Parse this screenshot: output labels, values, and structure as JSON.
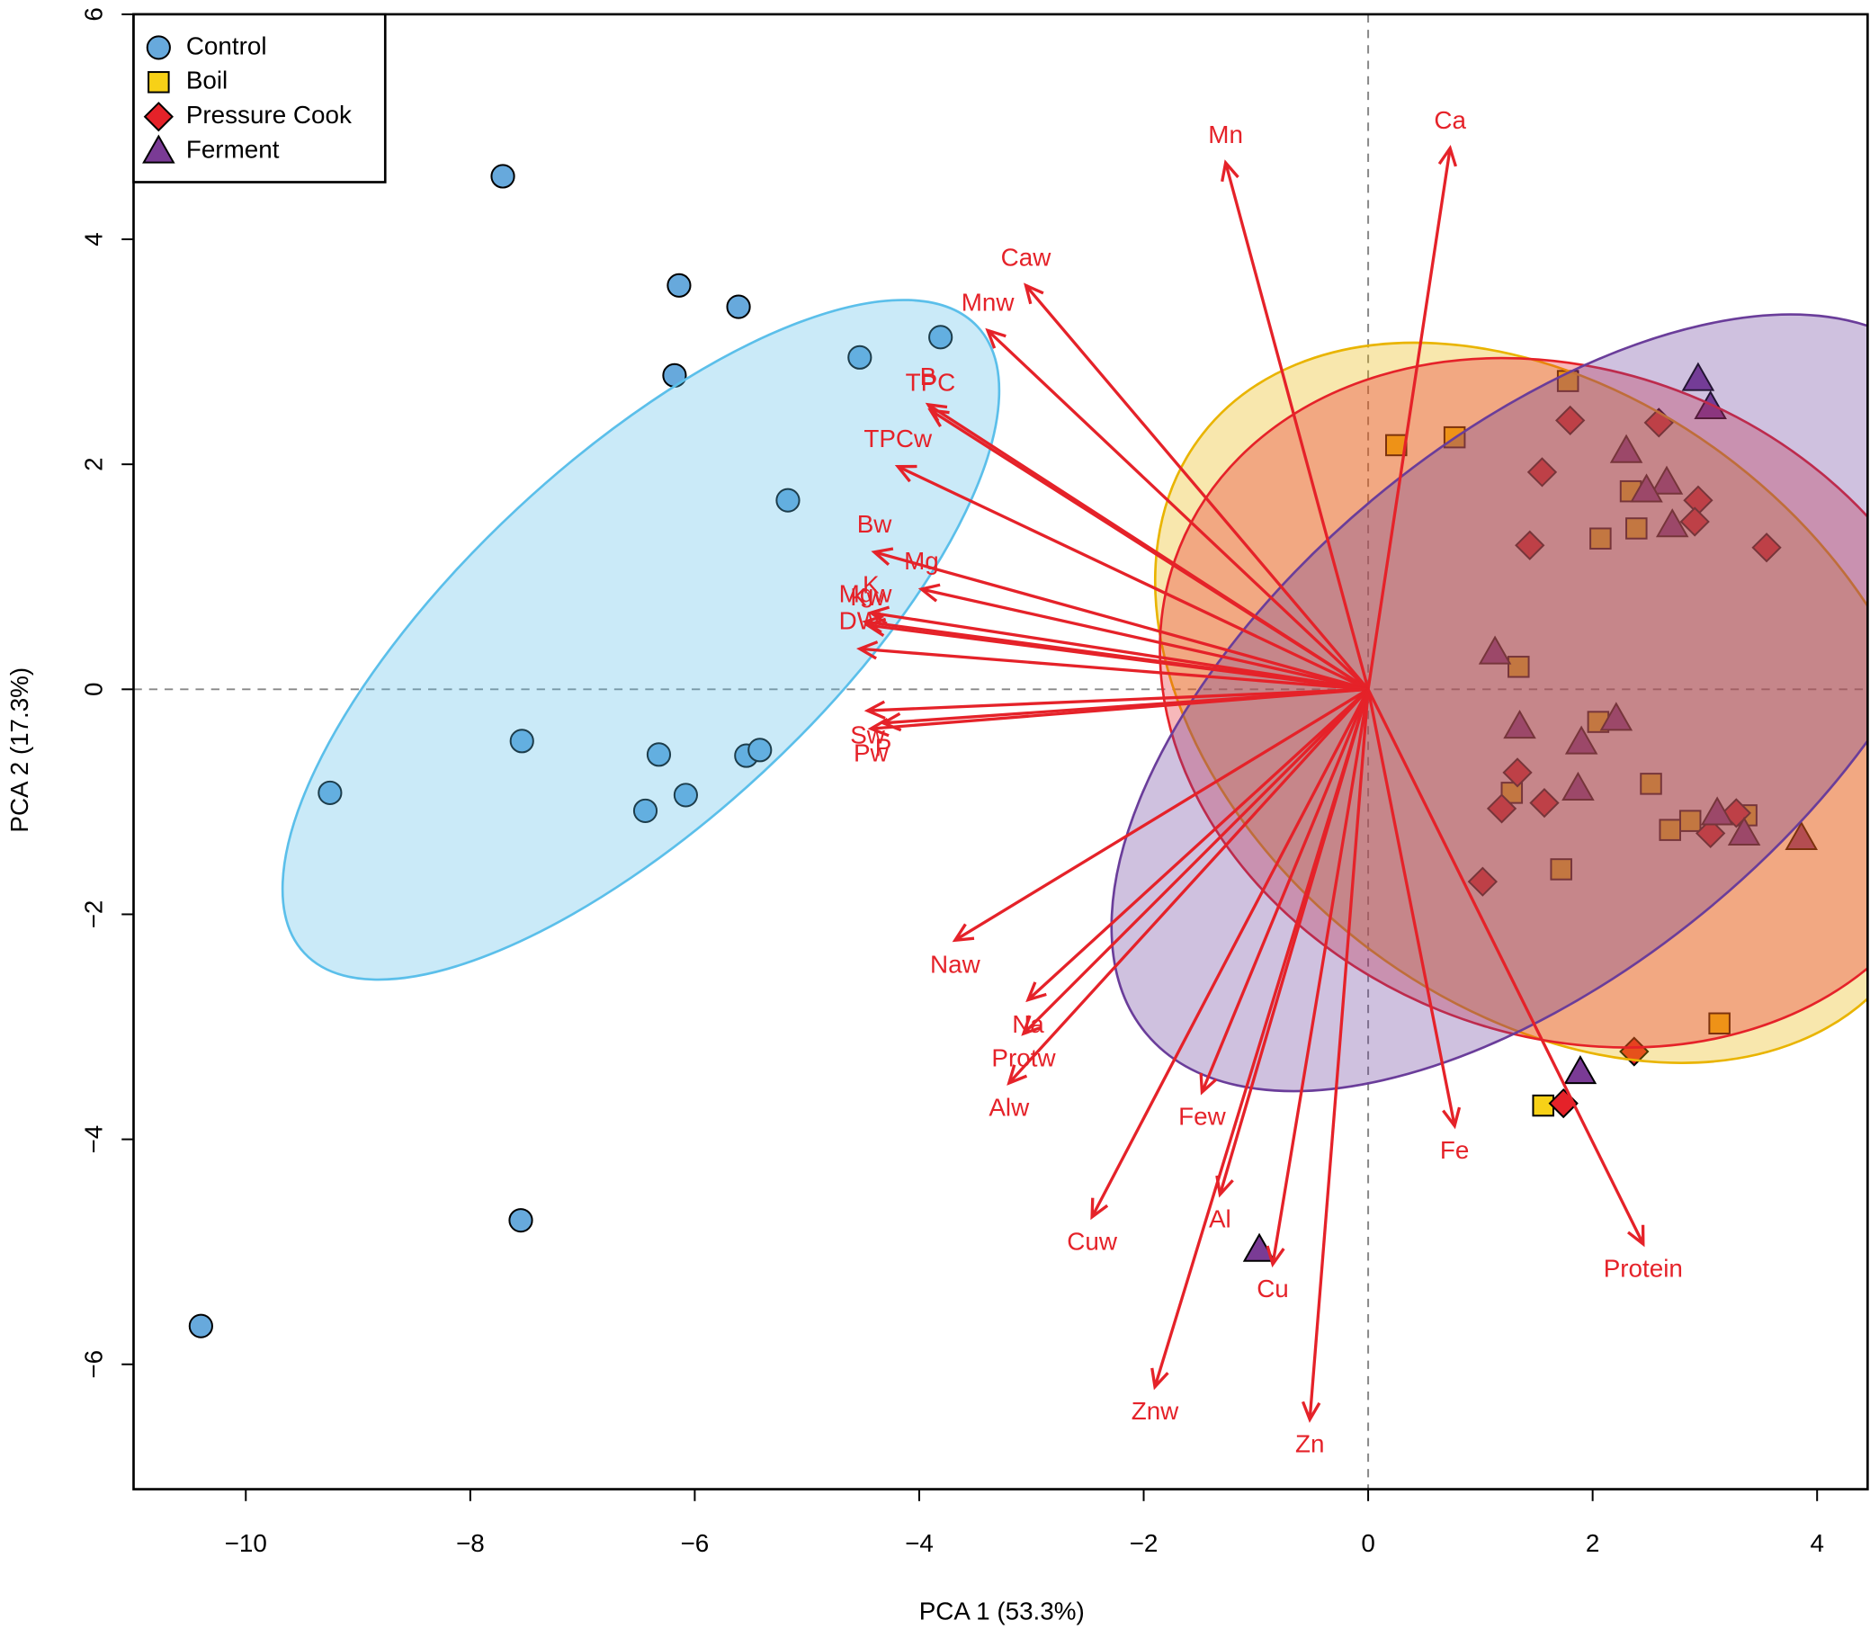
{
  "chart_data": {
    "type": "scatter",
    "x_label": "PCA 1 (53.3%)",
    "y_label": "PCA 2 (17.3%)",
    "xlim": [
      -11,
      4.45
    ],
    "ylim": [
      -7.11,
      6
    ],
    "xticks": [
      {
        "value": -10,
        "label": "−10"
      },
      {
        "value": -8,
        "label": "−8"
      },
      {
        "value": -6,
        "label": "−6"
      },
      {
        "value": -4,
        "label": "−4"
      },
      {
        "value": -2,
        "label": "−2"
      },
      0,
      2,
      4
    ],
    "yticks": [
      {
        "value": -6,
        "label": "−6"
      },
      {
        "value": -4,
        "label": "−4"
      },
      {
        "value": -2,
        "label": "−2"
      },
      0,
      2,
      4,
      6
    ],
    "legend": "upper left",
    "series": [
      {
        "name": "Control",
        "color": "#67a9dc",
        "marker": "circle",
        "x": [
          -7.71,
          -6.14,
          -5.61,
          -6.18,
          -4.53,
          -3.81,
          -5.17,
          -9.25,
          -7.54,
          -6.32,
          -5.54,
          -5.42,
          -6.08,
          -6.44,
          -7.55,
          -10.4
        ],
        "values": [
          4.56,
          3.59,
          3.4,
          2.79,
          2.95,
          3.13,
          1.68,
          -0.92,
          -0.46,
          -0.58,
          -0.59,
          -0.54,
          -0.94,
          -1.08,
          -4.72,
          -5.66
        ],
        "ellipse": {
          "color": "#5bbfea",
          "cx": -6.48,
          "cy": 0.44,
          "rx": 4.1,
          "ry": 1.6,
          "angle": 43
        }
      },
      {
        "name": "Boil",
        "color": "#f7d117",
        "marker": "square",
        "x": [
          0.25,
          1.78,
          0.77,
          2.34,
          2.39,
          2.07,
          1.34,
          2.05,
          2.52,
          1.28,
          2.87,
          2.69,
          3.37,
          1.72,
          3.13,
          1.56
        ],
        "values": [
          2.17,
          2.74,
          2.24,
          1.76,
          1.43,
          1.34,
          0.2,
          -0.29,
          -0.84,
          -0.92,
          -1.17,
          -1.25,
          -1.12,
          -1.6,
          -2.97,
          -3.7
        ],
        "ellipse": {
          "color": "#e9b400",
          "cx": 1.6,
          "cy": -0.12,
          "rx": 3.9,
          "ry": 2.7,
          "angle": -38
        }
      },
      {
        "name": "Pressure Cook",
        "color": "#e52229",
        "marker": "diamond",
        "x": [
          1.8,
          2.59,
          1.55,
          2.94,
          2.91,
          1.44,
          3.55,
          1.33,
          1.57,
          1.19,
          3.05,
          3.28,
          1.02,
          2.37,
          1.74
        ],
        "values": [
          2.39,
          2.37,
          1.93,
          1.68,
          1.49,
          1.28,
          1.26,
          -0.74,
          -1.01,
          -1.06,
          -1.28,
          -1.1,
          -1.71,
          -3.22,
          -3.68
        ],
        "ellipse": {
          "color": "#e52229",
          "cx": 1.75,
          "cy": -0.12,
          "rx": 3.7,
          "ry": 2.95,
          "angle": -22
        }
      },
      {
        "name": "Ferment",
        "color": "#7a3b95",
        "marker": "triangle",
        "x": [
          2.94,
          3.05,
          2.3,
          2.66,
          2.48,
          2.71,
          1.13,
          1.35,
          2.21,
          1.9,
          1.87,
          3.11,
          3.35,
          3.86,
          1.89,
          -0.97
        ],
        "values": [
          2.76,
          2.51,
          2.12,
          1.84,
          1.77,
          1.46,
          0.33,
          -0.33,
          -0.26,
          -0.47,
          -0.88,
          -1.1,
          -1.28,
          -1.32,
          -3.4,
          -4.98
        ],
        "ellipse": {
          "color": "#6a3d9a",
          "cx": 1.55,
          "cy": -0.12,
          "rx": 4.6,
          "ry": 2.35,
          "angle": 40
        }
      }
    ],
    "loadings": {
      "color": "#e52229",
      "names": [
        "Mn",
        "Ca",
        "Caw",
        "Mnw",
        "B",
        "TPC",
        "TPCw",
        "Bw",
        "Mg",
        "K",
        "Kw",
        "Mgw",
        "DW",
        "Sw",
        "Pw",
        "P",
        "Naw",
        "Na",
        "Protw",
        "Alw",
        "Few",
        "Cuw",
        "Al",
        "Cu",
        "Znw",
        "Zn",
        "Fe",
        "Protein"
      ],
      "x": [
        -1.27,
        0.73,
        -3.05,
        -3.39,
        -3.92,
        -3.9,
        -4.19,
        -4.4,
        -3.98,
        -4.43,
        -4.46,
        -4.48,
        -4.53,
        -4.46,
        -4.43,
        -4.32,
        -3.68,
        -3.03,
        -3.07,
        -3.2,
        -1.48,
        -2.46,
        -1.32,
        -0.85,
        -1.9,
        -0.52,
        0.77,
        2.45
      ],
      "y": [
        4.68,
        4.81,
        3.59,
        3.19,
        2.53,
        2.48,
        1.98,
        1.22,
        0.89,
        0.68,
        0.57,
        0.6,
        0.36,
        -0.19,
        -0.35,
        -0.3,
        -2.23,
        -2.76,
        -3.06,
        -3.5,
        -3.58,
        -4.69,
        -4.49,
        -5.11,
        -6.2,
        -6.49,
        -3.88,
        -4.93
      ]
    }
  }
}
